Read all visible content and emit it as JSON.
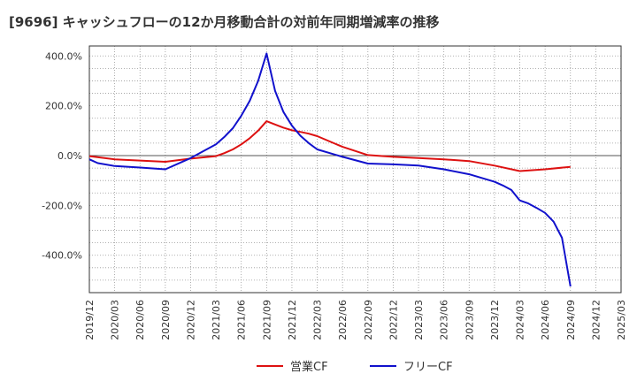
{
  "chart_data": {
    "type": "line",
    "title": "[9696]  キャッシュフローの12か月移動合計の対前年同期増減率の推移",
    "xlabel": "",
    "ylabel": "",
    "x": [
      "2019/12",
      "2020/03",
      "2020/06",
      "2020/09",
      "2020/12",
      "2021/03",
      "2021/06",
      "2021/09",
      "2021/12",
      "2022/03",
      "2022/06",
      "2022/09",
      "2022/12",
      "2023/03",
      "2023/06",
      "2023/09",
      "2023/12",
      "2024/03",
      "2024/06",
      "2024/09",
      "2024/12",
      "2025/03"
    ],
    "ylim": [
      -550,
      440
    ],
    "yticks": [
      400,
      200,
      0,
      -200,
      -400
    ],
    "ytick_labels": [
      "400.0%",
      "200.0%",
      "0.0%",
      "-200.0%",
      "-400.0%"
    ],
    "grid": true,
    "legend_position": "bottom",
    "series": [
      {
        "name": "営業CF",
        "color": "#dd1111",
        "points": [
          [
            "2019/12",
            -2
          ],
          [
            "2020/03",
            -15
          ],
          [
            "2020/06",
            -20
          ],
          [
            "2020/09",
            -25
          ],
          [
            "2020/12",
            -12
          ],
          [
            "2021/03",
            -2
          ],
          [
            "2021/04",
            10
          ],
          [
            "2021/05",
            25
          ],
          [
            "2021/06",
            45
          ],
          [
            "2021/07",
            70
          ],
          [
            "2021/08",
            100
          ],
          [
            "2021/09",
            138
          ],
          [
            "2021/10",
            125
          ],
          [
            "2021/11",
            112
          ],
          [
            "2021/12",
            102
          ],
          [
            "2022/01",
            95
          ],
          [
            "2022/02",
            88
          ],
          [
            "2022/03",
            78
          ],
          [
            "2022/06",
            35
          ],
          [
            "2022/09",
            2
          ],
          [
            "2022/12",
            -5
          ],
          [
            "2023/03",
            -10
          ],
          [
            "2023/06",
            -15
          ],
          [
            "2023/09",
            -22
          ],
          [
            "2023/12",
            -40
          ],
          [
            "2024/03",
            -62
          ],
          [
            "2024/06",
            -55
          ],
          [
            "2024/09",
            -45
          ]
        ]
      },
      {
        "name": "フリーCF",
        "color": "#1111cc",
        "points": [
          [
            "2019/12",
            -15
          ],
          [
            "2020/01",
            -30
          ],
          [
            "2020/03",
            -42
          ],
          [
            "2020/06",
            -48
          ],
          [
            "2020/09",
            -55
          ],
          [
            "2020/12",
            -10
          ],
          [
            "2021/03",
            45
          ],
          [
            "2021/04",
            75
          ],
          [
            "2021/05",
            110
          ],
          [
            "2021/06",
            160
          ],
          [
            "2021/07",
            220
          ],
          [
            "2021/08",
            300
          ],
          [
            "2021/09",
            410
          ],
          [
            "2021/10",
            260
          ],
          [
            "2021/11",
            175
          ],
          [
            "2021/12",
            120
          ],
          [
            "2022/01",
            80
          ],
          [
            "2022/02",
            50
          ],
          [
            "2022/03",
            25
          ],
          [
            "2022/06",
            -5
          ],
          [
            "2022/09",
            -32
          ],
          [
            "2022/12",
            -35
          ],
          [
            "2023/03",
            -40
          ],
          [
            "2023/06",
            -55
          ],
          [
            "2023/09",
            -75
          ],
          [
            "2023/12",
            -105
          ],
          [
            "2024/01",
            -120
          ],
          [
            "2024/02",
            -138
          ],
          [
            "2024/03",
            -180
          ],
          [
            "2024/04",
            -192
          ],
          [
            "2024/05",
            -210
          ],
          [
            "2024/06",
            -230
          ],
          [
            "2024/07",
            -265
          ],
          [
            "2024/08",
            -330
          ],
          [
            "2024/09",
            -525
          ]
        ]
      }
    ]
  }
}
